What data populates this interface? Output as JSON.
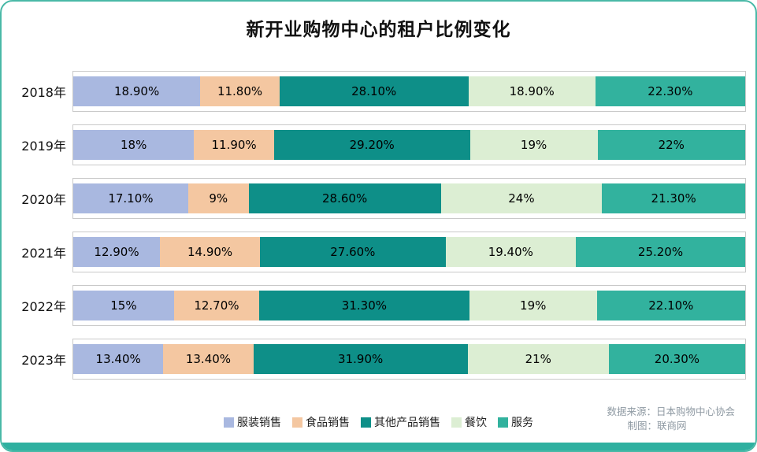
{
  "title": "新开业购物中心的租户比例变化",
  "chart_data": {
    "type": "bar",
    "orientation": "horizontal",
    "stacked": true,
    "stacked_total": 100,
    "title": "新开业购物中心的租户比例变化",
    "categories": [
      "2018年",
      "2019年",
      "2020年",
      "2021年",
      "2022年",
      "2023年"
    ],
    "series": [
      {
        "id": "apparel",
        "name": "服装销售",
        "color": "#a9b8e0",
        "values": [
          18.9,
          18,
          17.1,
          12.9,
          15,
          13.4
        ],
        "labels": [
          "18.90%",
          "18%",
          "17.10%",
          "12.90%",
          "15%",
          "13.40%"
        ]
      },
      {
        "id": "food",
        "name": "食品销售",
        "color": "#f4c7a1",
        "values": [
          11.8,
          11.9,
          9,
          14.9,
          12.7,
          13.4
        ],
        "labels": [
          "11.80%",
          "11.90%",
          "9%",
          "14.90%",
          "12.70%",
          "13.40%"
        ]
      },
      {
        "id": "other-products",
        "name": "其他产品销售",
        "color": "#0e8f88",
        "values": [
          28.1,
          29.2,
          28.6,
          27.6,
          31.3,
          31.9
        ],
        "labels": [
          "28.10%",
          "29.20%",
          "28.60%",
          "27.60%",
          "31.30%",
          "31.90%"
        ]
      },
      {
        "id": "dining",
        "name": "餐饮",
        "color": "#dceed3",
        "values": [
          18.9,
          19,
          24,
          19.4,
          19,
          21
        ],
        "labels": [
          "18.90%",
          "19%",
          "24%",
          "19.40%",
          "19%",
          "21%"
        ]
      },
      {
        "id": "services",
        "name": "服务",
        "color": "#32b29e",
        "values": [
          22.3,
          22,
          21.3,
          25.2,
          22.1,
          20.3
        ],
        "labels": [
          "22.30%",
          "22%",
          "21.30%",
          "25.20%",
          "22.10%",
          "20.30%"
        ]
      }
    ],
    "legend_position": "bottom-center",
    "grid": false
  },
  "source": {
    "line1": "数据来源：日本购物中心协会",
    "line2": "制图：联商网"
  },
  "colors": {
    "accent_bar": "#2fb0a0",
    "card_border": "#49b9a7",
    "bar_track_border": "#c9c9c9",
    "source_text": "#8f9aa3"
  }
}
